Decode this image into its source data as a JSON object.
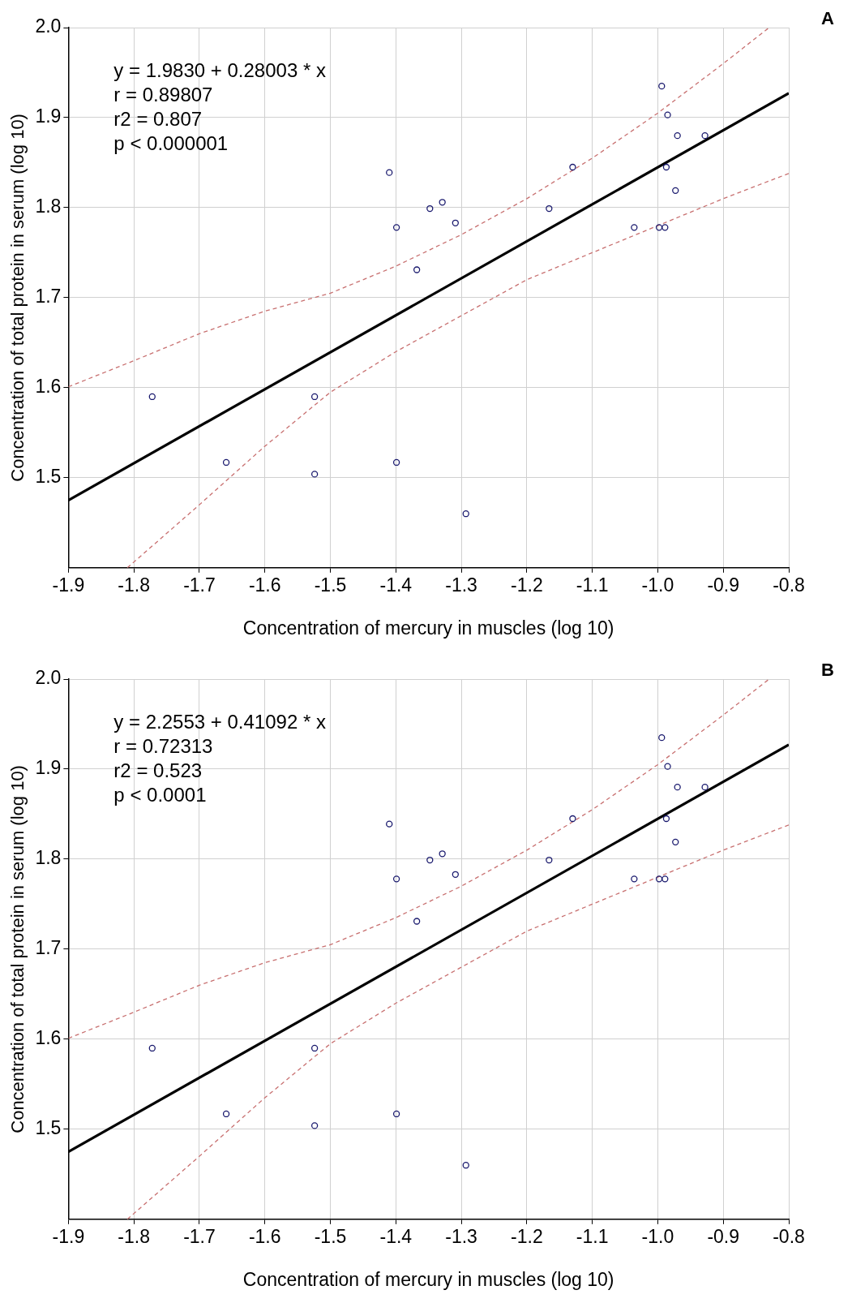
{
  "chart_data": [
    {
      "type": "scatter",
      "xlabel": "Concentration of mercury in muscles (log 10)",
      "ylabel": "Concentration of total protein in serum (log 10)",
      "annotations": [
        "A",
        "y = 1.9830 + 0.28003 * x",
        "r = 0.89807",
        "r2 = 0.807",
        "p < 0.000001"
      ],
      "xlim": [
        -1.9,
        -0.8
      ],
      "xticks": [
        -1.9,
        -1.8,
        -1.7,
        -1.6,
        -1.5,
        -1.4,
        -1.3,
        -1.2,
        -1.1,
        {
          "value": -1.0,
          "label": "-1.0"
        },
        -0.9,
        -0.8
      ],
      "ylim": [
        1.4,
        2.0
      ],
      "yticks": [
        1.5,
        1.6,
        1.7,
        1.8,
        1.9,
        {
          "value": 2.0,
          "label": "2.0"
        }
      ],
      "grid": true,
      "marker": "circle",
      "x": [
        -1.772,
        -1.659,
        -1.524,
        -1.524,
        -1.399,
        -1.41,
        -1.399,
        -1.368,
        -1.348,
        -1.329,
        -1.309,
        -1.293,
        -1.166,
        -1.13,
        -1.036,
        -0.998,
        -0.989,
        -0.994,
        -0.985,
        -0.987,
        -0.97,
        -0.973,
        -0.928
      ],
      "series": [
        {
          "type": "scatter",
          "color": "#1a1a6e",
          "values": [
            1.59,
            1.517,
            1.59,
            1.504,
            1.517,
            1.839,
            1.778,
            1.731,
            1.799,
            1.806,
            1.783,
            1.46,
            1.799,
            1.845,
            1.778,
            1.778,
            1.778,
            1.935,
            1.903,
            1.845,
            1.88,
            1.819,
            1.88
          ]
        },
        {
          "type": "line",
          "color": "#000000",
          "marker": "none",
          "x": [
            -1.9,
            -0.8
          ],
          "values": [
            1.475,
            1.927
          ]
        },
        {
          "type": "line",
          "color": "#c87070",
          "marker": "none",
          "line_style": "dashed",
          "x": [
            -1.9,
            -1.8,
            -1.7,
            -1.6,
            -1.5,
            -1.4,
            -1.3,
            -1.2,
            -1.1,
            -1.0,
            -0.9,
            -0.83
          ],
          "values": [
            1.601,
            1.63,
            1.66,
            1.685,
            1.705,
            1.735,
            1.77,
            1.81,
            1.855,
            1.905,
            1.96,
            2.0
          ]
        },
        {
          "type": "line",
          "color": "#c87070",
          "marker": "none",
          "line_style": "dashed",
          "x": [
            -1.81,
            -1.7,
            -1.6,
            -1.5,
            -1.4,
            -1.3,
            -1.2,
            -1.1,
            -1.0,
            -0.9,
            -0.8
          ],
          "values": [
            1.4,
            1.47,
            1.535,
            1.595,
            1.64,
            1.68,
            1.72,
            1.75,
            1.78,
            1.81,
            1.838
          ]
        }
      ]
    },
    {
      "type": "scatter",
      "xlabel": "Concentration of mercury in muscles (log 10)",
      "ylabel": "Concentration of total protein in serum (log 10)",
      "annotations": [
        "B",
        "y = 2.2553 + 0.41092 * x",
        "r = 0.72313",
        "r2 = 0.523",
        "p < 0.0001"
      ],
      "xlim": [
        -1.9,
        -0.8
      ],
      "xticks": [
        -1.9,
        -1.8,
        -1.7,
        -1.6,
        -1.5,
        -1.4,
        -1.3,
        -1.2,
        -1.1,
        {
          "value": -1.0,
          "label": "-1.0"
        },
        -0.9,
        -0.8
      ],
      "ylim": [
        1.4,
        2.0
      ],
      "yticks": [
        1.5,
        1.6,
        1.7,
        1.8,
        1.9,
        {
          "value": 2.0,
          "label": "2.0"
        }
      ],
      "grid": true,
      "marker": "circle",
      "x": [
        -1.772,
        -1.659,
        -1.524,
        -1.524,
        -1.399,
        -1.41,
        -1.399,
        -1.368,
        -1.348,
        -1.329,
        -1.309,
        -1.293,
        -1.166,
        -1.13,
        -1.036,
        -0.998,
        -0.989,
        -0.994,
        -0.985,
        -0.987,
        -0.97,
        -0.973,
        -0.928
      ],
      "series": [
        {
          "type": "scatter",
          "color": "#1a1a6e",
          "values": [
            1.59,
            1.517,
            1.59,
            1.504,
            1.517,
            1.839,
            1.778,
            1.731,
            1.799,
            1.806,
            1.783,
            1.46,
            1.799,
            1.845,
            1.778,
            1.778,
            1.778,
            1.935,
            1.903,
            1.845,
            1.88,
            1.819,
            1.88
          ]
        },
        {
          "type": "line",
          "color": "#000000",
          "marker": "none",
          "x": [
            -1.9,
            -0.8
          ],
          "values": [
            1.475,
            1.927
          ]
        },
        {
          "type": "line",
          "color": "#c87070",
          "marker": "none",
          "line_style": "dashed",
          "x": [
            -1.9,
            -1.8,
            -1.7,
            -1.6,
            -1.5,
            -1.4,
            -1.3,
            -1.2,
            -1.1,
            -1.0,
            -0.9,
            -0.83
          ],
          "values": [
            1.601,
            1.63,
            1.66,
            1.685,
            1.705,
            1.735,
            1.77,
            1.81,
            1.855,
            1.905,
            1.96,
            2.0
          ]
        },
        {
          "type": "line",
          "color": "#c87070",
          "marker": "none",
          "line_style": "dashed",
          "x": [
            -1.81,
            -1.7,
            -1.6,
            -1.5,
            -1.4,
            -1.3,
            -1.2,
            -1.1,
            -1.0,
            -0.9,
            -0.8
          ],
          "values": [
            1.4,
            1.47,
            1.535,
            1.595,
            1.64,
            1.68,
            1.72,
            1.75,
            1.78,
            1.81,
            1.838
          ]
        }
      ]
    }
  ]
}
